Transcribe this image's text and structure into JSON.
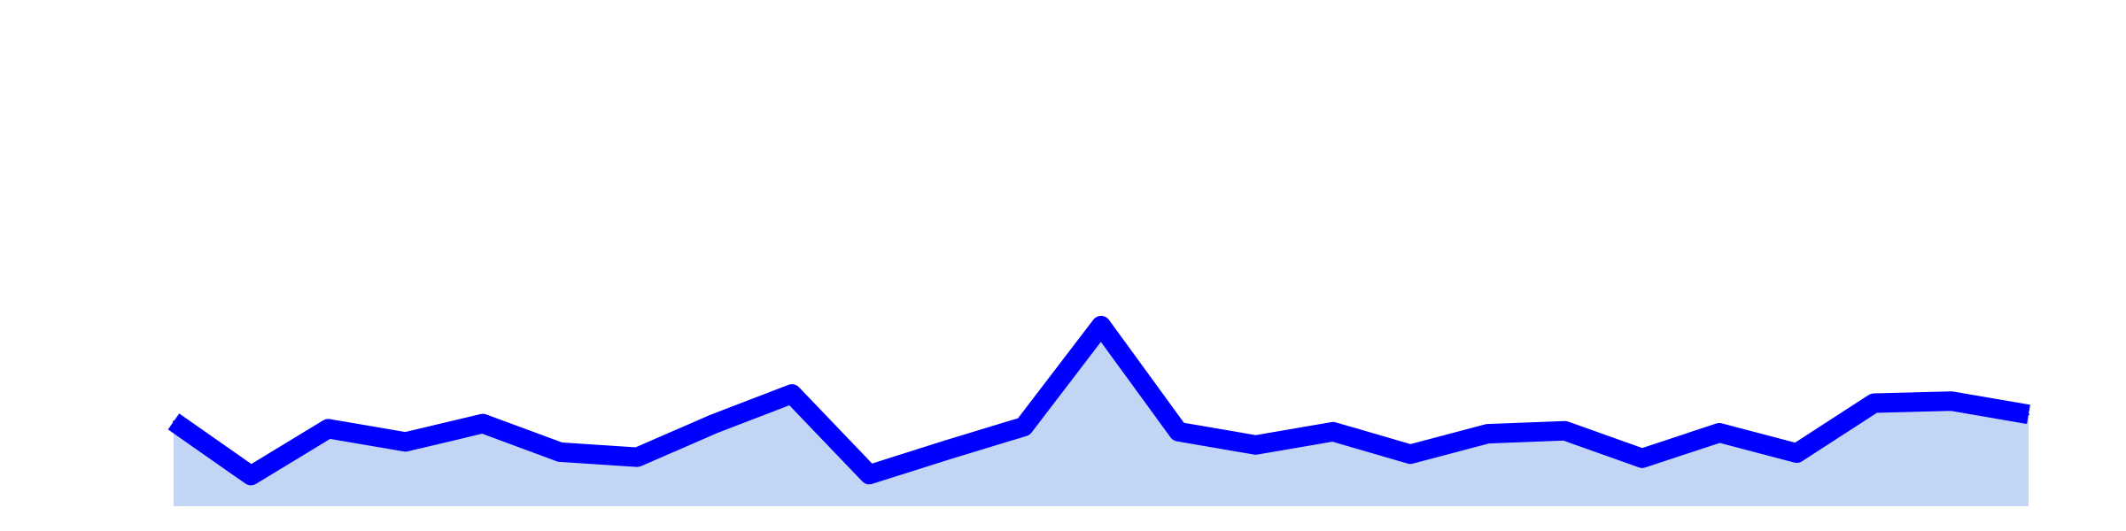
{
  "chart_data": {
    "type": "area",
    "x": [
      0,
      1,
      2,
      3,
      4,
      5,
      6,
      7,
      8,
      9,
      10,
      11,
      12,
      13,
      14,
      15,
      16,
      17,
      18,
      19,
      20,
      21,
      22,
      23,
      24
    ],
    "series": [
      {
        "values": [
          68,
          15,
          61,
          48,
          66,
          38,
          33,
          66,
          95,
          16,
          40,
          63,
          162,
          58,
          45,
          58,
          36,
          56,
          59,
          32,
          57,
          37,
          86,
          88,
          75
        ],
        "color": "#0000ff",
        "fill": "#c3d5f5"
      }
    ],
    "ylim": [
      -15,
      455
    ],
    "grid": false,
    "axes_visible": false
  }
}
